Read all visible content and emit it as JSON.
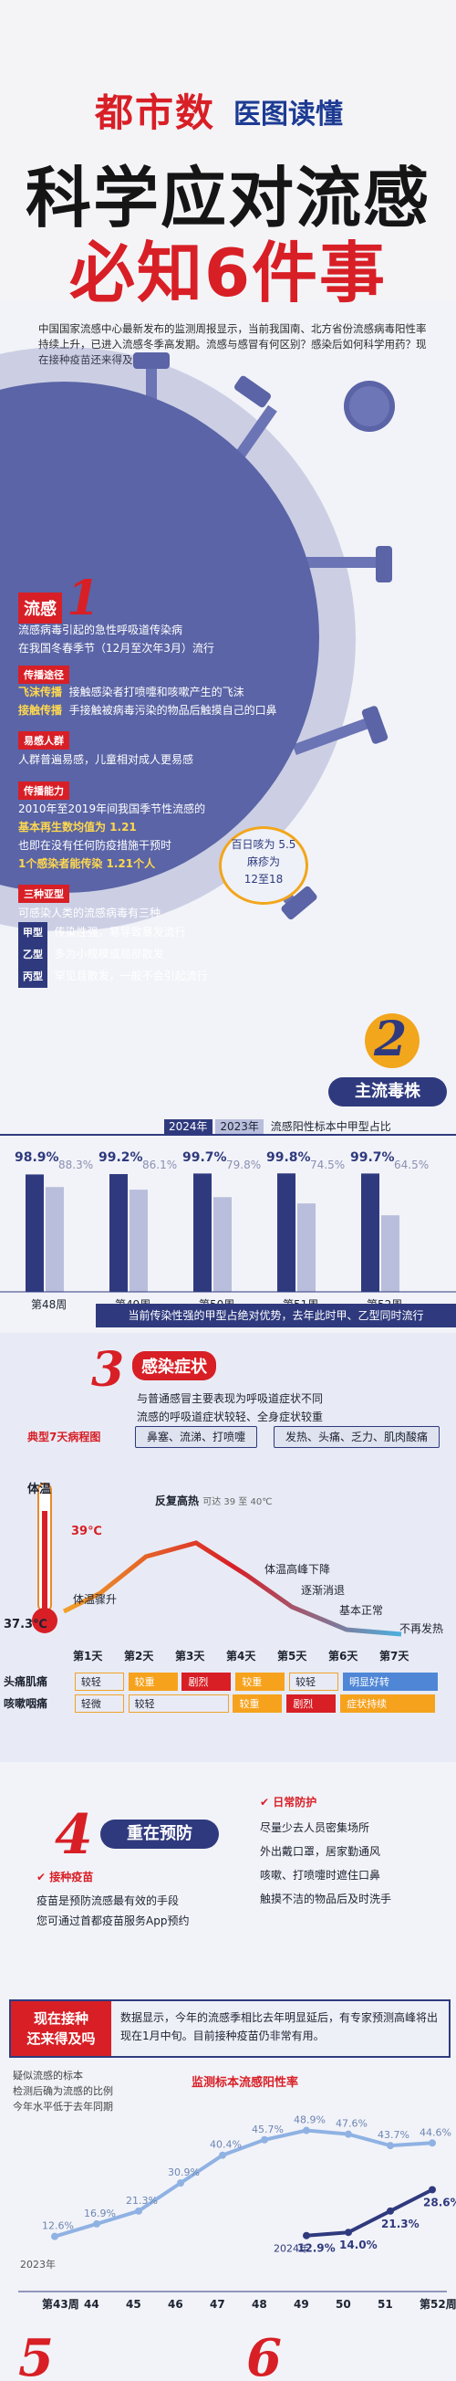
{
  "brand": {
    "logo1": "都市数",
    "logo2": "医图读懂"
  },
  "title": {
    "line1": "科学应对流感",
    "line2": "必知6件事"
  },
  "intro": "中国国家流感中心最新发布的监测周报显示，当前我国南、北方省份流感病毒阳性率持续上升，已进入流感冬季高发期。流感与感冒有何区别？感染后如何科学用药？现在接种疫苗还来得及吗？",
  "sec1": {
    "label": "流感",
    "num": "1",
    "desc": [
      "流感病毒引起的急性呼吸道传染病",
      "在我国冬春季节（12月至次年3月）流行"
    ],
    "route_tag": "传播途径",
    "route": [
      {
        "k": "飞沫传播",
        "v": "接触感染者打喷嚏和咳嗽产生的飞沫"
      },
      {
        "k": "接触传播",
        "v": "手接触被病毒污染的物品后触摸自己的口鼻"
      }
    ],
    "pop_tag": "易感人群",
    "pop": "人群普遍易感，儿童相对成人更易感",
    "ability_tag": "传播能力",
    "ability": [
      "2010年至2019年间我国季节性流感的",
      "基本再生数均值为 1.21",
      "也即在没有任何防疫措施干预时",
      "1个感染者能传染 1.21个人"
    ],
    "bubble": [
      "百日咳为 5.5",
      "麻疹为",
      "12至18"
    ],
    "sub_tag": "三种亚型",
    "sub_intro": "可感染人类的流感病毒有三种",
    "subs": [
      {
        "k": "甲型",
        "v": "传染性强，易导致暴发流行"
      },
      {
        "k": "乙型",
        "v": "多为小规模或局部散发"
      },
      {
        "k": "丙型",
        "v": "罕见且散发，一般不会引起流行"
      }
    ]
  },
  "sec2": {
    "num": "2",
    "title": "主流毒株",
    "legend": [
      "2024年",
      "2023年"
    ],
    "chart_title": "流感阳性标本中甲型占比",
    "note": "当前传染性强的甲型占绝对优势，去年此时甲、乙型同时流行"
  },
  "chart_data": [
    {
      "type": "bar",
      "title": "流感阳性标本中甲型占比",
      "categories": [
        "第48周",
        "第49周",
        "第50周",
        "第51周",
        "第52周"
      ],
      "series": [
        {
          "name": "2024年",
          "values": [
            98.9,
            99.2,
            99.7,
            99.8,
            99.7
          ],
          "labels": [
            "98.9%",
            "99.2%",
            "99.7%",
            "99.8%",
            "99.7%"
          ]
        },
        {
          "name": "2023年",
          "values": [
            88.3,
            86.1,
            79.8,
            74.5,
            64.5
          ],
          "labels": [
            "88.3%",
            "86.1%",
            "79.8%",
            "74.5%",
            "64.5%"
          ]
        }
      ],
      "ylim": [
        0,
        100
      ]
    },
    {
      "type": "line",
      "title": "监测标本流感阳性率",
      "categories": [
        "第43周",
        "44",
        "45",
        "46",
        "47",
        "48",
        "49",
        "50",
        "51",
        "第52周"
      ],
      "series": [
        {
          "name": "2024年",
          "values": [
            null,
            null,
            null,
            null,
            null,
            null,
            12.9,
            14.0,
            21.3,
            28.6
          ]
        },
        {
          "name": "2023年",
          "values": [
            12.6,
            16.9,
            21.3,
            30.9,
            40.4,
            45.7,
            48.9,
            47.6,
            43.7,
            44.6
          ]
        }
      ],
      "ylim": [
        0,
        60
      ]
    }
  ],
  "sec3": {
    "num": "3",
    "title": "感染症状",
    "desc": [
      "与普通感冒主要表现为呼吸道症状不同",
      "流感的呼吸道症状较轻、全身症状较重"
    ],
    "resp": "鼻塞、流涕、打喷嚏",
    "sys": "发热、头痛、乏力、肌肉酸痛",
    "course_label": "典型7天病程图",
    "temp_label": "体温",
    "t39": "39℃",
    "t373": "37.3℃",
    "annot": [
      "反复高热",
      "可达 39 至 40℃",
      "体温骤升",
      "体温高峰下降",
      "逐渐消退",
      "基本正常",
      "不再发热"
    ],
    "days": [
      "第1天",
      "第2天",
      "第3天",
      "第4天",
      "第5天",
      "第6天",
      "第7天"
    ],
    "rows": [
      {
        "label": "头痛肌痛",
        "cells": [
          "较轻",
          "较重",
          "剧烈",
          "较重",
          "较轻",
          "明显好转"
        ]
      },
      {
        "label": "咳嗽咽痛",
        "cells": [
          "轻微",
          "较轻",
          "较重",
          "剧烈",
          "症状持续"
        ]
      }
    ]
  },
  "sec4": {
    "num": "4",
    "title": "重在预防",
    "vac_tag": "接种疫苗",
    "vac": [
      "疫苗是预防流感最有效的手段",
      "您可通过首都疫苗服务App预约"
    ],
    "daily_tag": "日常防护",
    "daily": [
      "尽量少去人员密集场所",
      "外出戴口罩，居家勤通风",
      "咳嗽、打喷嚏时遮住口鼻",
      "触摸不洁的物品后及时洗手"
    ],
    "now_tag": [
      "现在接种",
      "还来得及吗"
    ],
    "now_text": "数据显示，今年的流感季相比去年明显延后，有专家预测高峰将出现在1月中旬。目前接种疫苗仍非常有用。"
  },
  "bottom": {
    "note": [
      "疑似流感的标本",
      "检测后确为流感的比例",
      "今年水平低于去年同期"
    ],
    "chart_title": "监测标本流感阳性率",
    "y2023": "2023年",
    "y2024": "2024年",
    "labels23": [
      "12.6%",
      "16.9%",
      "21.3%",
      "30.9%",
      "40.4%",
      "45.7%",
      "48.9%",
      "47.6%",
      "43.7%",
      "44.6%"
    ],
    "labels24": [
      "12.9%",
      "14.0%",
      "21.3%",
      "28.6%"
    ]
  },
  "footer": [
    "5",
    "6"
  ]
}
